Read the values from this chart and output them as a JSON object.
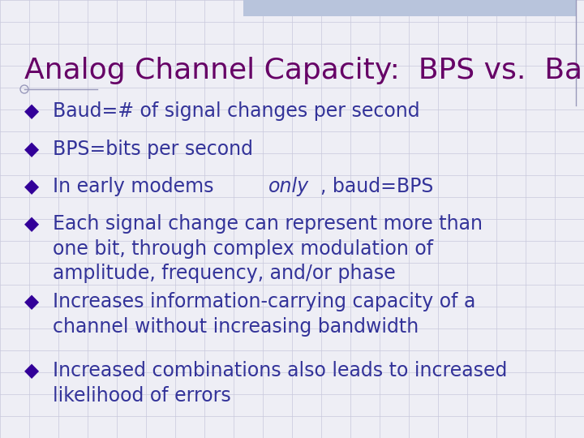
{
  "title": "Analog Channel Capacity:  BPS vs.  Baud",
  "title_color": "#660066",
  "title_fontsize": 26,
  "background_color": "#eeeef5",
  "bullet_color": "#330099",
  "text_color": "#333399",
  "bullet_char": "◆",
  "bullet_fontsize": 17,
  "bullets": [
    {
      "text": "Baud=# of signal changes per second",
      "italic_word": null
    },
    {
      "text": "BPS=bits per second",
      "italic_word": null
    },
    {
      "text": "In early modems only, baud=BPS",
      "italic_word": "only"
    },
    {
      "text": "Each signal change can represent more than\none bit, through complex modulation of\namplitude, frequency, and/or phase",
      "italic_word": null
    },
    {
      "text": "Increases information-carrying capacity of a\nchannel without increasing bandwidth",
      "italic_word": null
    },
    {
      "text": "Increased combinations also leads to increased\nlikelihood of errors",
      "italic_word": null
    }
  ],
  "grid_color": "#c8c8dc",
  "header_bar_color": "#b8c4dc",
  "right_line_color": "#9999bb",
  "decor_color": "#9999bb"
}
